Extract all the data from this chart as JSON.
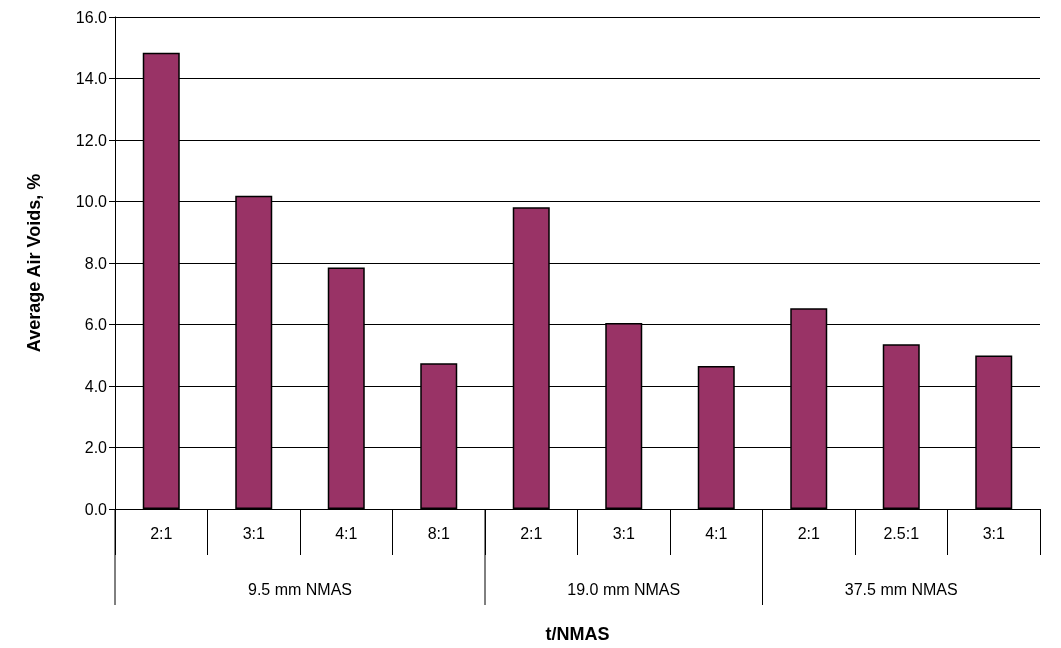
{
  "chart_data": {
    "type": "bar",
    "xlabel": "t/NMAS",
    "ylabel": "Average Air Voids, %",
    "categories": [
      "2:1",
      "3:1",
      "4:1",
      "8:1",
      "2:1",
      "3:1",
      "4:1",
      "2:1",
      "2.5:1",
      "3:1"
    ],
    "values": [
      14.84,
      10.19,
      7.85,
      4.74,
      9.81,
      6.05,
      4.65,
      6.53,
      5.36,
      4.99
    ],
    "color": "#993366",
    "ylim": [
      0,
      16
    ],
    "yticks": [
      {
        "value": 0,
        "label": "0.0"
      },
      {
        "value": 2,
        "label": "2.0"
      },
      {
        "value": 4,
        "label": "4.0"
      },
      {
        "value": 6,
        "label": "6.0"
      },
      {
        "value": 8,
        "label": "8.0"
      },
      {
        "value": 10,
        "label": "10.0"
      },
      {
        "value": 12,
        "label": "12.0"
      },
      {
        "value": 14,
        "label": "14.0"
      },
      {
        "value": 16,
        "label": "16.0"
      }
    ],
    "grid": "y",
    "annotations": [
      "9.5 mm NMAS",
      "19.0 mm NMAS",
      "37.5 mm NMAS"
    ]
  }
}
